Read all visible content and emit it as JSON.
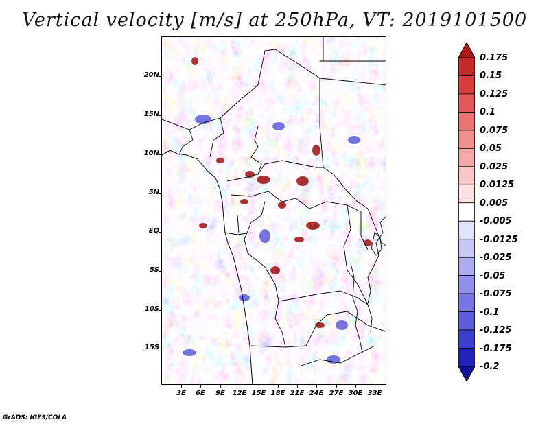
{
  "title": "Vertical velocity [m/s] at 250hPa, VT: 2019101500",
  "footer": "GrADS: IGES/COLA",
  "map": {
    "region": "Central Africa",
    "latitude_labels": [
      "20N",
      "15N",
      "10N",
      "5N",
      "EQ",
      "5S",
      "10S",
      "15S"
    ],
    "longitude_labels": [
      "3E",
      "6E",
      "9E",
      "12E",
      "15E",
      "18E",
      "21E",
      "24E",
      "27E",
      "30E",
      "33E"
    ]
  },
  "colorbar": {
    "labels": [
      "0.175",
      "0.15",
      "0.125",
      "0.1",
      "0.075",
      "0.05",
      "0.025",
      "0.0125",
      "0.005",
      "-0.005",
      "-0.0125",
      "-0.025",
      "-0.05",
      "-0.075",
      "-0.1",
      "-0.125",
      "-0.175",
      "-0.2"
    ],
    "colors": [
      "#b01818",
      "#c52a2a",
      "#d43e3e",
      "#e05a5a",
      "#e97575",
      "#ef8f8f",
      "#f4aaaa",
      "#f8c6c6",
      "#fbe0e0",
      "#ffffff",
      "#e2e2fb",
      "#c8c8f7",
      "#adadf2",
      "#9191ec",
      "#7676e4",
      "#5b5bdc",
      "#3d3dce",
      "#2222b8",
      "#10109a"
    ]
  }
}
